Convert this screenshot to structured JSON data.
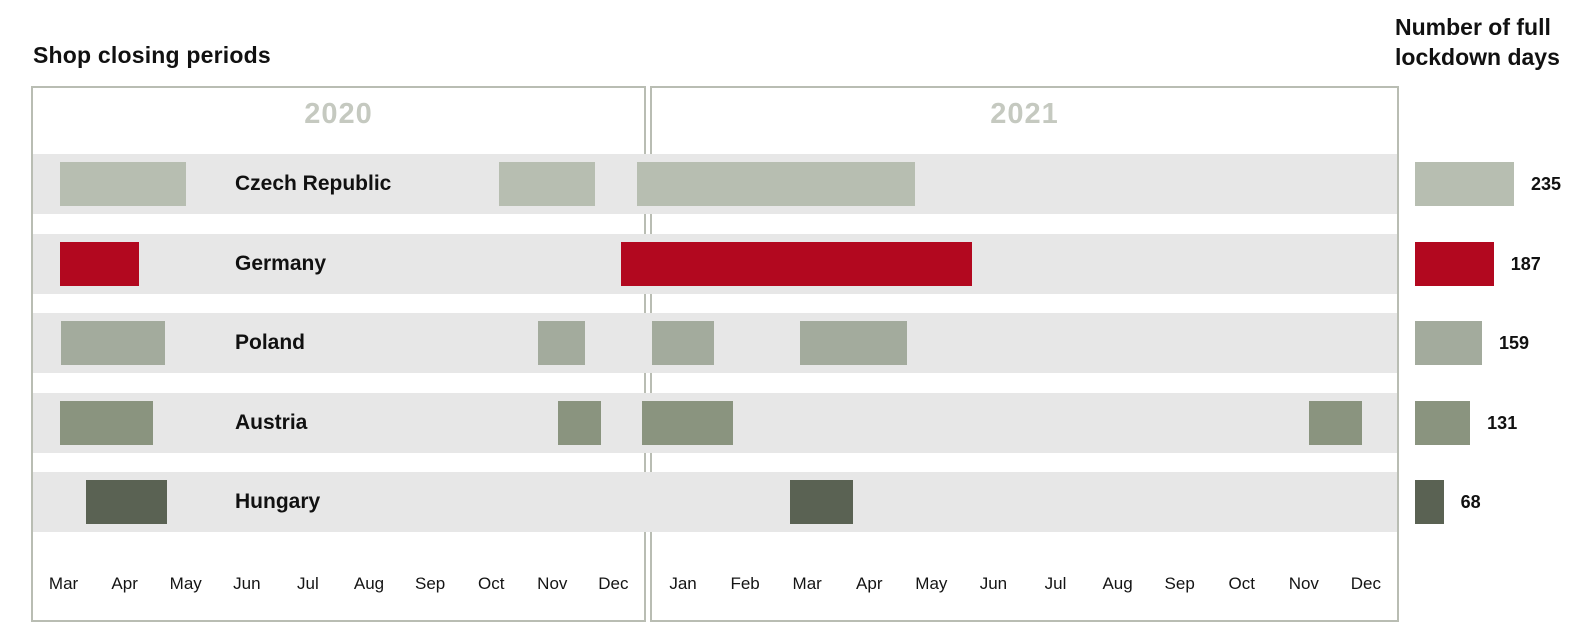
{
  "title": "Shop closing periods",
  "right_header": {
    "line1": "Number of full",
    "line2": "lockdown days"
  },
  "colors": {
    "row_band": "#e7e7e7",
    "panel_border": "#b9bdb3",
    "year_label": "#c5c9c0",
    "text": "#111111"
  },
  "chart_data": {
    "type": "gantt-timeline",
    "title": "Shop closing periods",
    "right_axis_title": "Number of full lockdown days",
    "timeline": {
      "origin": "2020-03",
      "unit": "months elapsed since 1 Mar 2020 (0 = Mar 2020, 10 = Jan 2021, 22 = end Dec 2021)",
      "years": [
        {
          "label": "2020",
          "months": [
            "Mar",
            "Apr",
            "May",
            "Jun",
            "Jul",
            "Aug",
            "Sep",
            "Oct",
            "Nov",
            "Dec"
          ]
        },
        {
          "label": "2021",
          "months": [
            "Jan",
            "Feb",
            "Mar",
            "Apr",
            "May",
            "Jun",
            "Jul",
            "Aug",
            "Sep",
            "Oct",
            "Nov",
            "Dec"
          ]
        }
      ]
    },
    "rows": [
      {
        "country": "Czech Republic",
        "color": "#b7beb1",
        "lockdown_days": 235,
        "periods": [
          {
            "start": 0.44,
            "end": 2.5,
            "approx_dates": "2020-03-14 to 2020-05-16"
          },
          {
            "start": 7.62,
            "end": 9.2,
            "approx_dates": "2020-10-22 to 2020-12-06"
          },
          {
            "start": 9.88,
            "end": 14.24,
            "approx_dates": "2020-12-27 to 2021-05-08"
          }
        ]
      },
      {
        "country": "Germany",
        "color": "#b2081f",
        "lockdown_days": 187,
        "periods": [
          {
            "start": 0.45,
            "end": 1.73,
            "approx_dates": "2020-03-16 to 2020-04-22"
          },
          {
            "start": 9.62,
            "end": 15.15,
            "approx_dates": "2020-12-19 to 2021-06-04"
          }
        ]
      },
      {
        "country": "Poland",
        "color": "#a3ab9d",
        "lockdown_days": 159,
        "periods": [
          {
            "start": 0.46,
            "end": 2.16,
            "approx_dates": "2020-03-16 to 2020-05-05"
          },
          {
            "start": 8.26,
            "end": 9.03,
            "approx_dates": "2020-11-09 to 2020-12-01"
          },
          {
            "start": 10.0,
            "end": 11.0,
            "approx_dates": "2021-01-01 to 2021-01-31"
          },
          {
            "start": 12.38,
            "end": 14.1,
            "approx_dates": "2021-03-12 to 2021-05-03"
          }
        ]
      },
      {
        "country": "Austria",
        "color": "#8a947f",
        "lockdown_days": 131,
        "periods": [
          {
            "start": 0.44,
            "end": 1.96,
            "approx_dates": "2020-03-16 to 2020-05-01"
          },
          {
            "start": 8.6,
            "end": 9.3,
            "approx_dates": "2020-11-18 to 2020-12-09"
          },
          {
            "start": 9.97,
            "end": 11.3,
            "approx_dates": "2020-12-30 to 2021-02-09"
          },
          {
            "start": 20.58,
            "end": 21.44,
            "approx_dates": "2021-11-18 to 2021-12-14"
          }
        ]
      },
      {
        "country": "Hungary",
        "color": "#5a6253",
        "lockdown_days": 68,
        "periods": [
          {
            "start": 0.87,
            "end": 2.2,
            "approx_dates": "2020-03-28 to 2020-05-06"
          },
          {
            "start": 12.22,
            "end": 13.24,
            "approx_dates": "2021-03-07 to 2021-04-07"
          }
        ]
      }
    ],
    "lockdown_days_values": [
      235,
      187,
      159,
      131,
      68
    ],
    "layout_hints": {
      "legend": "none",
      "grid": "off",
      "bars_share_row_bands": true
    }
  }
}
